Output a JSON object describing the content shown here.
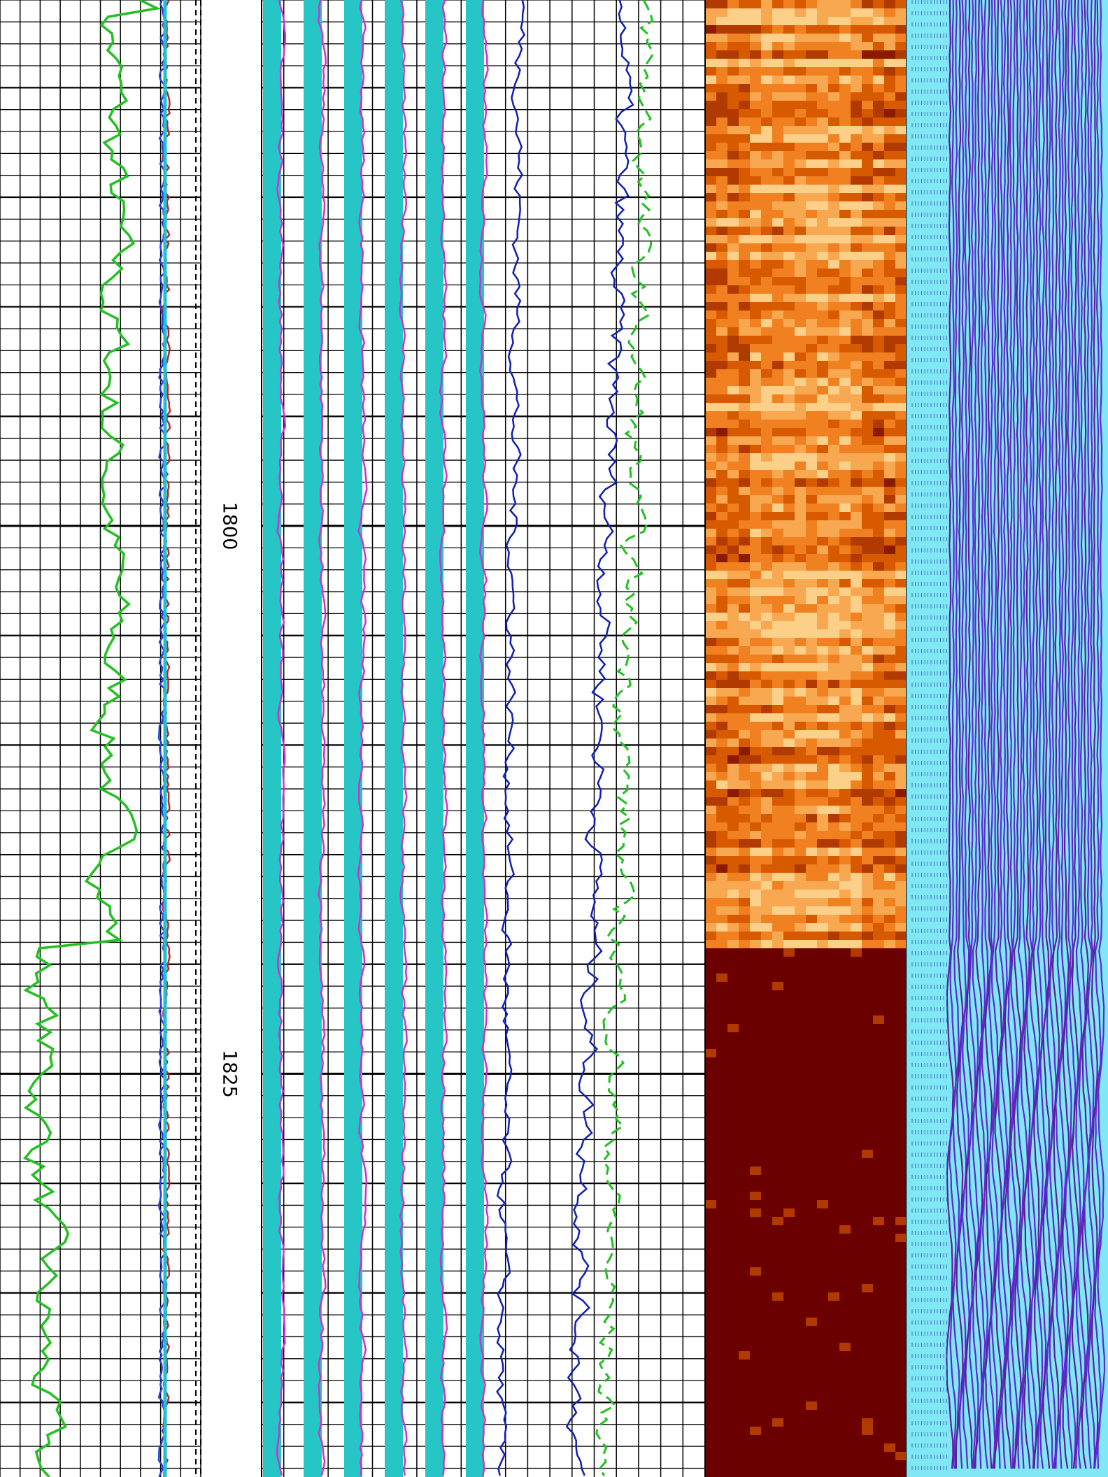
{
  "chart_data": {
    "type": "log",
    "ylim": [
      1776,
      1843.4
    ],
    "yticks": [
      1800,
      1825
    ],
    "grid": true
  }
}
